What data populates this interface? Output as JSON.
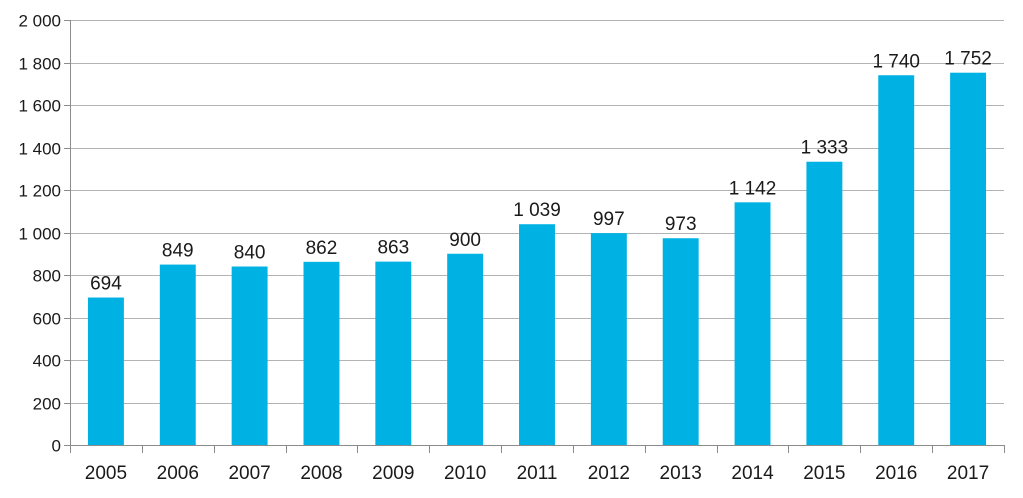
{
  "chart_data": {
    "type": "bar",
    "title": "",
    "xlabel": "",
    "ylabel": "",
    "categories": [
      "2005",
      "2006",
      "2007",
      "2008",
      "2009",
      "2010",
      "2011",
      "2012",
      "2013",
      "2014",
      "2015",
      "2016",
      "2017"
    ],
    "values": [
      694,
      849,
      840,
      862,
      863,
      900,
      1039,
      997,
      973,
      1142,
      1333,
      1740,
      1752
    ],
    "value_labels": [
      "694",
      "849",
      "840",
      "862",
      "863",
      "900",
      "1 039",
      "997",
      "973",
      "1 142",
      "1 333",
      "1 740",
      "1 752"
    ],
    "ylim": [
      0,
      2000
    ],
    "yticks": [
      0,
      200,
      400,
      600,
      800,
      1000,
      1200,
      1400,
      1600,
      1800,
      2000
    ],
    "ytick_labels": [
      "0",
      "200",
      "400",
      "600",
      "800",
      "1 000",
      "1 200",
      "1 400",
      "1 600",
      "1 800",
      "2 000"
    ],
    "grid": true,
    "legend": "none",
    "bar_color": "#00b2e3",
    "grid_color": "#b3b3b3",
    "axis_color": "#8c8c8c"
  }
}
